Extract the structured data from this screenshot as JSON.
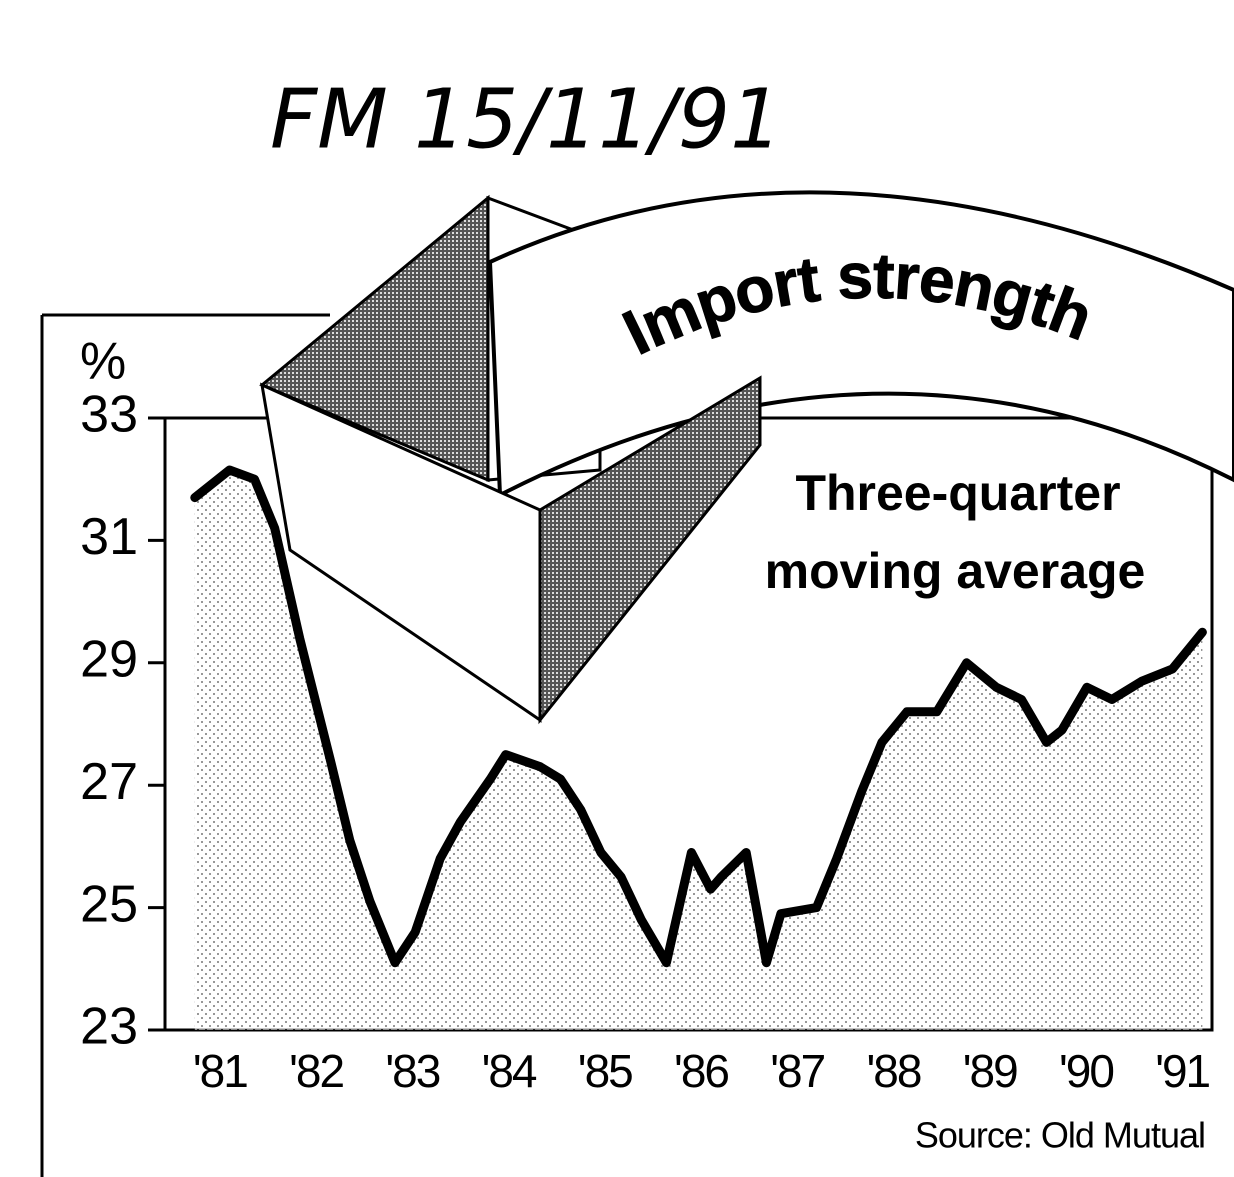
{
  "handwriting": "FM 15/11/91",
  "chart_data": {
    "type": "line",
    "title": "Import strength",
    "annotation": "Three-quarter moving average",
    "y_label": "%",
    "source": "Source: Old Mutual",
    "x": [
      1981.24,
      1981.6,
      1981.86,
      1982.07,
      1982.33,
      1982.65,
      1982.85,
      1983.06,
      1983.32,
      1983.53,
      1983.79,
      1984.0,
      1984.31,
      1984.47,
      1984.83,
      1985.04,
      1985.25,
      1985.46,
      1985.67,
      1985.88,
      1986.14,
      1986.4,
      1986.6,
      1986.71,
      1986.97,
      1987.18,
      1987.33,
      1987.7,
      1987.91,
      1988.17,
      1988.38,
      1988.64,
      1988.95,
      1989.26,
      1989.57,
      1989.83,
      1990.09,
      1990.25,
      1990.51,
      1990.77,
      1991.08,
      1991.4,
      1991.71
    ],
    "values": [
      31.7,
      32.15,
      32.0,
      31.2,
      29.4,
      27.4,
      26.1,
      25.1,
      24.1,
      24.6,
      25.8,
      26.4,
      27.1,
      27.5,
      27.3,
      27.1,
      26.6,
      25.9,
      25.5,
      24.8,
      24.1,
      25.9,
      25.3,
      25.5,
      25.9,
      24.1,
      24.9,
      25.0,
      25.8,
      26.9,
      27.7,
      28.2,
      28.2,
      29.0,
      28.6,
      28.4,
      27.7,
      27.9,
      28.6,
      28.4,
      28.7,
      28.9,
      29.5
    ],
    "color": "#000000",
    "xlim": [
      1980.93,
      1991.81
    ],
    "xticks": [
      {
        "value": 1981.5,
        "label": "'81"
      },
      {
        "value": 1982.5,
        "label": "'82"
      },
      {
        "value": 1983.5,
        "label": "'83"
      },
      {
        "value": 1984.5,
        "label": "'84"
      },
      {
        "value": 1985.5,
        "label": "'85"
      },
      {
        "value": 1986.5,
        "label": "'86"
      },
      {
        "value": 1987.5,
        "label": "'87"
      },
      {
        "value": 1988.5,
        "label": "'88"
      },
      {
        "value": 1989.5,
        "label": "'89"
      },
      {
        "value": 1990.5,
        "label": "'90"
      },
      {
        "value": 1991.5,
        "label": "'91"
      }
    ],
    "ylim": [
      23,
      33
    ],
    "yticks": [
      23,
      25,
      27,
      29,
      31,
      33
    ]
  }
}
